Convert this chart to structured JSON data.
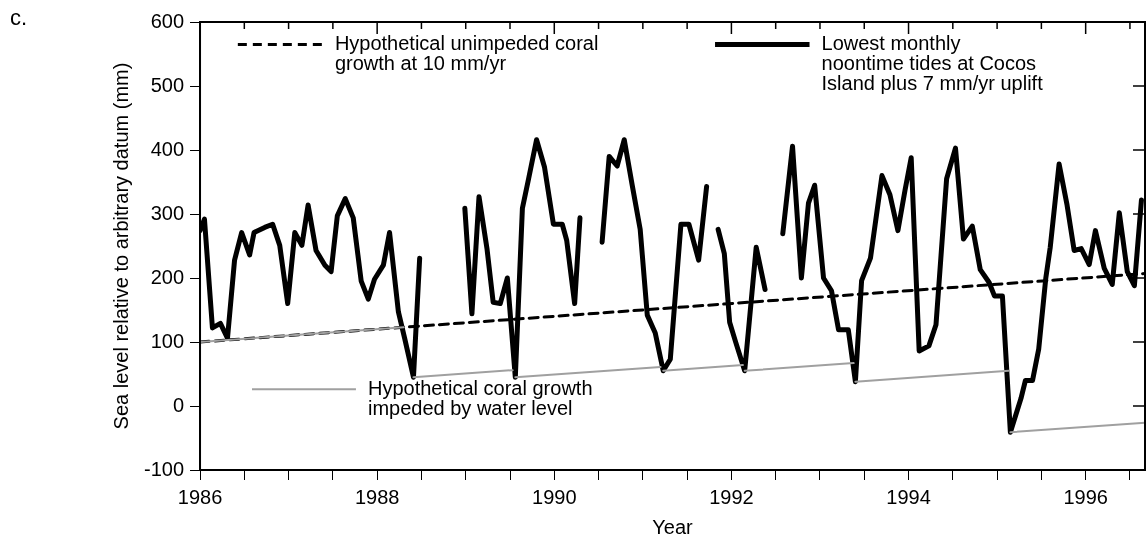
{
  "chart_data": {
    "type": "line",
    "title": "c.",
    "xlabel": "Year",
    "ylabel": "Sea level relative to arbitrary datum (mm)",
    "xlim": [
      1986,
      1996.67
    ],
    "xticks": [
      1986,
      {
        "value": 1986.5,
        "label": null
      },
      {
        "value": 1987,
        "label": null
      },
      {
        "value": 1987.5,
        "label": null
      },
      1988,
      {
        "value": 1988.5,
        "label": null
      },
      {
        "value": 1989,
        "label": null
      },
      {
        "value": 1989.5,
        "label": null
      },
      1990,
      {
        "value": 1990.5,
        "label": null
      },
      {
        "value": 1991,
        "label": null
      },
      {
        "value": 1991.5,
        "label": null
      },
      1992,
      {
        "value": 1992.5,
        "label": null
      },
      {
        "value": 1993,
        "label": null
      },
      {
        "value": 1993.5,
        "label": null
      },
      1994,
      {
        "value": 1994.5,
        "label": null
      },
      {
        "value": 1995,
        "label": null
      },
      {
        "value": 1995.5,
        "label": null
      },
      1996,
      {
        "value": 1996.5,
        "label": null
      }
    ],
    "ylim": [
      -100,
      600
    ],
    "yticks": [
      -100,
      0,
      100,
      200,
      300,
      400,
      500,
      600
    ],
    "grid": false,
    "legend": "top",
    "marker": "none",
    "series": [
      {
        "name": "Hypothetical unimpeded coral growth at 10 mm/yr",
        "color": "#000000",
        "line_style": "dashed",
        "x": [
          1986,
          1996.67
        ],
        "values": [
          100,
          207
        ]
      },
      {
        "name": "Lowest monthly noontime tides at Cocos Island plus 7 mm/yr uplift",
        "color": "#000000",
        "line_style": "solid",
        "x": [
          1986.0,
          1986.05,
          1986.14,
          1986.23,
          1986.31,
          1986.39,
          1986.47,
          1986.56,
          1986.61,
          1986.73,
          1986.82,
          1986.9,
          1986.99,
          1987.07,
          1987.15,
          1987.22,
          1987.31,
          1987.41,
          1987.48,
          1987.55,
          1987.64,
          1987.73,
          1987.82,
          1987.9,
          1987.97,
          1988.07,
          1988.14,
          1988.24,
          1988.31,
          1988.41,
          1988.48,
          1988.7,
          1988.99,
          1989.07,
          1989.15,
          1989.24,
          1989.31,
          1989.39,
          1989.47,
          1989.56,
          1989.64,
          1989.71,
          1989.8,
          1989.89,
          1989.99,
          1990.09,
          1990.14,
          1990.23,
          1990.29,
          1990.4,
          1990.54,
          1990.62,
          1990.71,
          1990.79,
          1990.88,
          1990.97,
          1991.05,
          1991.14,
          1991.23,
          1991.31,
          1991.43,
          1991.52,
          1991.63,
          1991.72,
          1991.8,
          1991.85,
          1991.92,
          1991.98,
          1992.05,
          1992.15,
          1992.28,
          1992.38,
          1992.5,
          1992.58,
          1992.69,
          1992.79,
          1992.87,
          1992.94,
          1993.04,
          1993.13,
          1993.21,
          1993.32,
          1993.4,
          1993.47,
          1993.57,
          1993.7,
          1993.79,
          1993.88,
          1993.96,
          1994.03,
          1994.12,
          1994.23,
          1994.31,
          1994.43,
          1994.53,
          1994.62,
          1994.72,
          1994.81,
          1994.91,
          1994.97,
          1995.06,
          1995.15,
          1995.27,
          1995.32,
          1995.4,
          1995.47,
          1995.55,
          1995.6,
          1995.7,
          1995.79,
          1995.87,
          1995.95,
          1996.04,
          1996.11,
          1996.21,
          1996.3,
          1996.38,
          1996.47,
          1996.55,
          1996.63
        ],
        "values": [
          274,
          292,
          122,
          129,
          106,
          228,
          271,
          236,
          271,
          279,
          284,
          251,
          160,
          271,
          251,
          314,
          243,
          220,
          210,
          297,
          324,
          294,
          195,
          167,
          198,
          220,
          271,
          147,
          106,
          45,
          231,
          null,
          309,
          144,
          327,
          246,
          162,
          160,
          200,
          45,
          309,
          355,
          416,
          373,
          284,
          284,
          259,
          160,
          294,
          null,
          256,
          390,
          375,
          416,
          345,
          276,
          142,
          114,
          55,
          73,
          284,
          284,
          228,
          343,
          null,
          276,
          238,
          131,
          99,
          55,
          248,
          182,
          null,
          269,
          406,
          200,
          317,
          345,
          200,
          180,
          119,
          119,
          38,
          196,
          231,
          360,
          330,
          274,
          337,
          388,
          86,
          94,
          127,
          355,
          403,
          261,
          281,
          213,
          193,
          172,
          172,
          -41,
          12,
          40,
          40,
          89,
          200,
          248,
          378,
          314,
          243,
          246,
          221,
          274,
          215,
          190,
          302,
          210,
          188,
          322
        ]
      },
      {
        "name": "Hypothetical coral growth impeded by water level",
        "color": "#a0a0a0",
        "line_style": "solid",
        "x": [
          1986,
          1988.3,
          1988.35,
          1988.41,
          1989.53,
          1989.55,
          1989.56,
          1991.2,
          1991.22,
          1991.23,
          1992.13,
          1992.14,
          1992.15,
          1993.38,
          1993.39,
          1993.4,
          1995.13,
          1995.14,
          1995.15,
          1996.67
        ],
        "values": [
          100,
          123,
          null,
          45,
          56,
          null,
          45,
          61,
          null,
          55,
          64,
          null,
          55,
          67,
          null,
          38,
          55,
          null,
          -41,
          -26
        ]
      }
    ]
  }
}
